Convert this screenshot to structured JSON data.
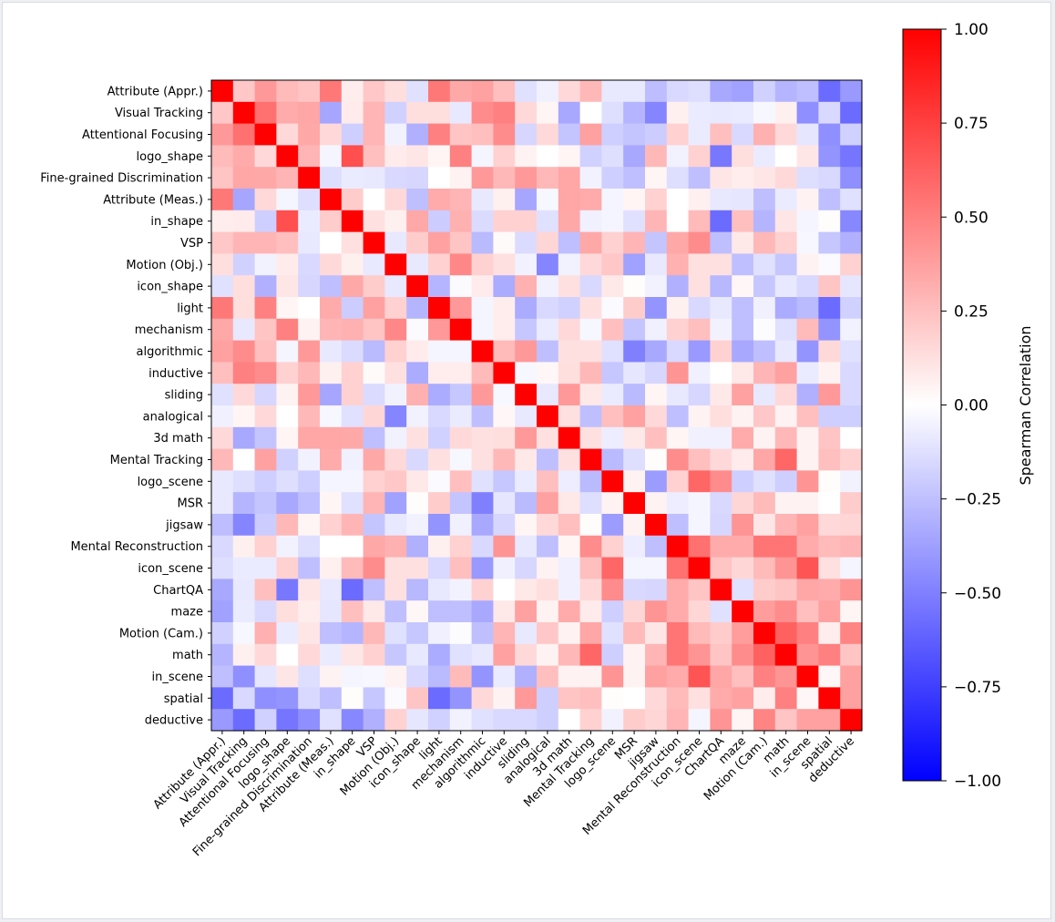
{
  "chart_data": {
    "type": "heatmap",
    "title": "",
    "labels": [
      "Attribute (Appr.)",
      "Visual Tracking",
      "Attentional Focusing",
      "logo_shape",
      "Fine-grained Discrimination",
      "Attribute (Meas.)",
      "in_shape",
      "VSP",
      "Motion (Obj.)",
      "icon_shape",
      "light",
      "mechanism",
      "algorithmic",
      "inductive",
      "sliding",
      "analogical",
      "3d math",
      "Mental Tracking",
      "logo_scene",
      "MSR",
      "jigsaw",
      "Mental Reconstruction",
      "icon_scene",
      "ChartQA",
      "maze",
      "Motion (Cam.)",
      "math",
      "in_scene",
      "spatial",
      "deductive"
    ],
    "colormap": "bwr",
    "colors": {
      "negative": "#0000ff",
      "zero": "#ffffff",
      "positive": "#ff0000"
    },
    "vmin": -1.0,
    "vmax": 1.0,
    "colorbar": {
      "label": "Spearman Correlation",
      "ticks": [
        1.0,
        0.75,
        0.5,
        0.25,
        0.0,
        -0.25,
        -0.5,
        -0.75,
        -1.0
      ],
      "tick_labels": [
        "1.00",
        "0.75",
        "0.50",
        "0.25",
        "0.00",
        "−0.25",
        "−0.50",
        "−0.75",
        "−1.00"
      ]
    },
    "values": [
      [
        1,
        0.22,
        0.4,
        0.27,
        0.23,
        0.53,
        0.07,
        0.22,
        0.13,
        -0.12,
        0.53,
        0.34,
        0.37,
        0.25,
        -0.12,
        -0.06,
        0.15,
        0.28,
        -0.09,
        -0.09,
        -0.26,
        -0.15,
        -0.13,
        -0.34,
        -0.37,
        -0.18,
        -0.29,
        -0.25,
        -0.58,
        -0.4
      ],
      [
        0.22,
        1,
        0.56,
        0.33,
        0.35,
        -0.35,
        0.08,
        0.29,
        -0.18,
        0.13,
        0.13,
        -0.09,
        0.45,
        0.5,
        0.15,
        0.04,
        -0.34,
        0,
        -0.13,
        -0.29,
        -0.48,
        0.06,
        -0.08,
        -0.09,
        -0.08,
        -0.03,
        0.06,
        -0.44,
        -0.15,
        -0.58
      ],
      [
        0.4,
        0.56,
        1,
        0.15,
        0.34,
        0.15,
        -0.19,
        0.29,
        -0.05,
        -0.31,
        0.5,
        0.23,
        0.25,
        0.45,
        -0.16,
        0.15,
        -0.23,
        0.37,
        -0.19,
        -0.23,
        -0.2,
        0.18,
        -0.08,
        0.25,
        -0.15,
        0.31,
        0.15,
        -0.1,
        -0.44,
        -0.18
      ],
      [
        0.27,
        0.33,
        0.15,
        1,
        0.29,
        -0.04,
        0.69,
        0.25,
        0.08,
        0.1,
        0.04,
        0.5,
        -0.04,
        0.18,
        0.05,
        0,
        0.04,
        -0.18,
        -0.13,
        -0.34,
        0.28,
        -0.05,
        0.18,
        -0.53,
        0.13,
        -0.08,
        0,
        0.1,
        -0.42,
        -0.54
      ],
      [
        0.23,
        0.35,
        0.34,
        0.29,
        1,
        -0.13,
        -0.08,
        -0.09,
        -0.15,
        -0.16,
        0,
        0.05,
        0.4,
        0.28,
        0.4,
        0.28,
        0.35,
        -0.05,
        -0.19,
        -0.25,
        0.04,
        -0.13,
        -0.25,
        0.1,
        0.07,
        0.1,
        0.15,
        -0.13,
        -0.15,
        -0.44
      ],
      [
        0.53,
        -0.35,
        0.15,
        -0.04,
        -0.13,
        1,
        0.2,
        0,
        0.15,
        -0.25,
        0.33,
        0.29,
        -0.09,
        0.06,
        -0.35,
        -0.03,
        0.35,
        0.33,
        -0.04,
        0.04,
        0.18,
        0,
        0.06,
        -0.09,
        -0.1,
        -0.25,
        -0.08,
        0.05,
        -0.25,
        -0.12
      ],
      [
        0.07,
        0.08,
        -0.19,
        0.69,
        -0.08,
        0.2,
        1,
        0.12,
        0.06,
        0.34,
        -0.2,
        0.31,
        -0.14,
        0.18,
        0.18,
        -0.12,
        0.34,
        -0.06,
        -0.04,
        -0.12,
        0.29,
        0,
        0.27,
        -0.58,
        0.25,
        -0.29,
        0.1,
        -0.04,
        0.01,
        -0.47
      ],
      [
        0.22,
        0.29,
        0.29,
        0.25,
        -0.09,
        0,
        0.12,
        1,
        -0.09,
        0.2,
        0.37,
        0.23,
        -0.27,
        0.02,
        -0.14,
        0.16,
        -0.25,
        0.34,
        0.18,
        0.29,
        -0.23,
        0.34,
        0.45,
        -0.25,
        0.09,
        0.28,
        0.18,
        -0.03,
        -0.22,
        -0.31
      ],
      [
        0.13,
        -0.18,
        -0.05,
        0.08,
        -0.15,
        0.15,
        0.06,
        -0.09,
        1,
        -0.09,
        0.18,
        0.47,
        0.18,
        0.12,
        -0.05,
        -0.48,
        -0.05,
        0.15,
        0.22,
        -0.37,
        -0.09,
        0.31,
        0.12,
        0.12,
        -0.25,
        -0.12,
        -0.22,
        0.05,
        -0.02,
        0.18
      ],
      [
        -0.12,
        0.13,
        -0.31,
        0.1,
        -0.16,
        -0.25,
        0.34,
        0.2,
        -0.09,
        1,
        -0.29,
        -0.02,
        0.08,
        -0.33,
        0.31,
        -0.05,
        0.12,
        -0.15,
        0.09,
        0.01,
        -0.05,
        -0.31,
        0.12,
        -0.28,
        0.03,
        -0.22,
        -0.09,
        -0.15,
        0.23,
        -0.1
      ],
      [
        0.53,
        0.13,
        0.5,
        0.04,
        0,
        0.33,
        -0.2,
        0.37,
        0.18,
        -0.29,
        1,
        0.4,
        -0.04,
        0.07,
        -0.33,
        -0.15,
        -0.18,
        0.12,
        -0.02,
        0.2,
        -0.42,
        0.06,
        -0.15,
        -0.09,
        -0.25,
        -0.06,
        -0.33,
        -0.27,
        -0.58,
        -0.18
      ],
      [
        0.34,
        -0.09,
        0.23,
        0.5,
        0.05,
        0.29,
        0.31,
        0.23,
        0.47,
        -0.02,
        0.4,
        1,
        -0.04,
        0.07,
        -0.22,
        -0.08,
        0.15,
        -0.03,
        0.25,
        -0.23,
        -0.06,
        0.18,
        0.25,
        -0.05,
        -0.25,
        -0.01,
        -0.12,
        0.27,
        -0.42,
        -0.05
      ],
      [
        0.37,
        0.45,
        0.25,
        -0.04,
        0.4,
        -0.09,
        -0.14,
        -0.27,
        0.18,
        0.08,
        -0.04,
        -0.04,
        1,
        0.27,
        0.4,
        -0.25,
        0.12,
        0.12,
        -0.12,
        -0.5,
        -0.34,
        -0.15,
        -0.4,
        0.18,
        -0.34,
        -0.25,
        -0.09,
        -0.42,
        0.15,
        -0.12
      ],
      [
        0.25,
        0.5,
        0.45,
        0.18,
        0.28,
        0.06,
        0.18,
        0.02,
        0.12,
        -0.33,
        0.07,
        0.07,
        0.27,
        1,
        -0.03,
        0.03,
        0.13,
        0.28,
        -0.22,
        -0.1,
        -0.16,
        0.42,
        -0.06,
        0,
        0.09,
        0.29,
        0.37,
        -0.08,
        0.05,
        -0.15
      ],
      [
        -0.12,
        0.15,
        -0.16,
        0.05,
        0.4,
        -0.35,
        0.18,
        -0.14,
        -0.05,
        0.31,
        -0.33,
        -0.22,
        0.4,
        -0.03,
        1,
        -0.09,
        0.4,
        0.09,
        -0.08,
        -0.27,
        0.04,
        -0.09,
        -0.16,
        0.09,
        0.37,
        -0.09,
        0.15,
        -0.31,
        0.4,
        -0.15
      ],
      [
        -0.06,
        0.04,
        0.15,
        0,
        0.28,
        -0.03,
        -0.12,
        0.16,
        -0.48,
        -0.05,
        -0.15,
        -0.08,
        -0.25,
        0.03,
        -0.09,
        1,
        0.12,
        -0.25,
        0.25,
        0.37,
        0.15,
        -0.25,
        0.05,
        0.13,
        0.05,
        0.22,
        0.05,
        0.25,
        -0.19,
        -0.19
      ],
      [
        0.15,
        -0.34,
        -0.23,
        0.04,
        0.35,
        0.35,
        0.34,
        -0.25,
        -0.05,
        0.12,
        -0.18,
        0.15,
        0.12,
        0.13,
        0.4,
        0.12,
        1,
        0.12,
        -0.07,
        0.09,
        0.25,
        0.04,
        -0.06,
        -0.06,
        0.33,
        0.05,
        0.28,
        0.05,
        0.23,
        0
      ],
      [
        0.28,
        0,
        0.37,
        -0.18,
        -0.05,
        0.33,
        -0.06,
        0.34,
        0.15,
        -0.15,
        0.12,
        -0.03,
        0.12,
        0.28,
        0.09,
        -0.25,
        0.12,
        1,
        -0.27,
        -0.13,
        0.01,
        0.45,
        0.25,
        0.15,
        0.08,
        0.35,
        0.6,
        0.05,
        0.25,
        0.18
      ],
      [
        -0.09,
        -0.13,
        -0.19,
        -0.13,
        -0.19,
        -0.04,
        -0.04,
        0.18,
        0.22,
        0.09,
        -0.02,
        0.25,
        -0.12,
        -0.22,
        -0.08,
        0.25,
        -0.07,
        -0.27,
        1,
        0.05,
        -0.39,
        0.18,
        0.6,
        0.45,
        -0.19,
        -0.12,
        -0.19,
        0.42,
        0.01,
        -0.05
      ],
      [
        -0.09,
        -0.29,
        -0.23,
        -0.34,
        -0.25,
        0.04,
        -0.12,
        0.29,
        -0.37,
        0.01,
        0.2,
        -0.23,
        -0.5,
        -0.1,
        -0.27,
        0.37,
        0.09,
        -0.13,
        0.05,
        1,
        0.05,
        -0.07,
        -0.04,
        -0.15,
        0.16,
        0.27,
        0.05,
        0.05,
        0,
        0.2
      ],
      [
        -0.26,
        -0.48,
        -0.2,
        0.28,
        0.04,
        0.18,
        0.29,
        -0.23,
        -0.09,
        -0.05,
        -0.42,
        -0.06,
        -0.34,
        -0.16,
        0.04,
        0.15,
        0.25,
        0.01,
        -0.39,
        0.05,
        1,
        -0.25,
        -0.04,
        -0.16,
        0.42,
        0.1,
        0.29,
        0.37,
        0.15,
        0.16
      ],
      [
        -0.15,
        0.06,
        0.18,
        -0.05,
        -0.13,
        0,
        0,
        0.34,
        0.31,
        -0.31,
        0.06,
        0.18,
        -0.15,
        0.42,
        -0.09,
        -0.25,
        0.04,
        0.45,
        0.18,
        -0.07,
        -0.25,
        1,
        0.56,
        0.33,
        0.33,
        0.54,
        0.54,
        0.33,
        0.27,
        0.29
      ],
      [
        -0.13,
        -0.08,
        -0.08,
        0.18,
        -0.25,
        0.06,
        0.27,
        0.45,
        0.12,
        0.12,
        -0.15,
        0.25,
        -0.4,
        -0.06,
        -0.16,
        0.05,
        -0.06,
        0.25,
        0.6,
        -0.04,
        -0.04,
        0.56,
        1,
        0.23,
        0.16,
        0.27,
        0.42,
        0.67,
        0.12,
        -0.04
      ],
      [
        -0.34,
        -0.09,
        0.25,
        -0.53,
        0.1,
        -0.09,
        -0.58,
        -0.25,
        0.12,
        -0.28,
        -0.09,
        -0.05,
        0.18,
        0,
        0.09,
        0.13,
        -0.06,
        0.15,
        0.45,
        -0.15,
        -0.16,
        0.33,
        0.23,
        1,
        -0.12,
        0.2,
        0.23,
        0.35,
        0.33,
        0.42
      ],
      [
        -0.37,
        -0.08,
        -0.15,
        0.13,
        0.07,
        -0.1,
        0.25,
        0.09,
        -0.25,
        0.03,
        -0.25,
        -0.25,
        -0.34,
        0.09,
        0.37,
        0.05,
        0.33,
        0.08,
        -0.19,
        0.16,
        0.42,
        0.33,
        0.16,
        -0.12,
        1,
        0.39,
        0.45,
        0.25,
        0.37,
        0.04
      ],
      [
        -0.18,
        -0.03,
        0.31,
        -0.08,
        0.1,
        -0.25,
        -0.29,
        0.28,
        -0.12,
        -0.22,
        -0.06,
        -0.01,
        -0.25,
        0.29,
        -0.09,
        0.22,
        0.05,
        0.35,
        -0.12,
        0.27,
        0.1,
        0.54,
        0.27,
        0.2,
        0.39,
        1,
        0.62,
        0.5,
        0.07,
        0.48
      ],
      [
        -0.29,
        0.06,
        0.15,
        0,
        0.15,
        -0.08,
        0.1,
        0.18,
        -0.22,
        -0.09,
        -0.33,
        -0.12,
        -0.09,
        0.37,
        0.15,
        0.05,
        0.28,
        0.6,
        -0.19,
        0.05,
        0.29,
        0.54,
        0.42,
        0.23,
        0.45,
        0.62,
        1,
        0.42,
        0.5,
        0.23
      ],
      [
        -0.25,
        -0.44,
        -0.1,
        0.1,
        -0.13,
        0.05,
        -0.04,
        -0.03,
        0.05,
        -0.15,
        -0.27,
        0.27,
        -0.42,
        -0.08,
        -0.31,
        0.25,
        0.05,
        0.05,
        0.42,
        0.05,
        0.37,
        0.33,
        0.67,
        0.35,
        0.25,
        0.5,
        0.42,
        1,
        0.03,
        0.37
      ],
      [
        -0.58,
        -0.15,
        -0.44,
        -0.42,
        -0.15,
        -0.25,
        0.01,
        -0.22,
        -0.02,
        0.23,
        -0.58,
        -0.42,
        0.15,
        0.05,
        0.4,
        -0.19,
        0.23,
        0.25,
        0.01,
        0,
        0.15,
        0.27,
        0.12,
        0.33,
        0.37,
        0.07,
        0.5,
        0.03,
        1,
        0.37
      ],
      [
        -0.4,
        -0.58,
        -0.18,
        -0.54,
        -0.44,
        -0.12,
        -0.47,
        -0.31,
        0.18,
        -0.1,
        -0.18,
        -0.05,
        -0.12,
        -0.15,
        -0.15,
        -0.19,
        0,
        0.18,
        -0.05,
        0.2,
        0.16,
        0.29,
        -0.04,
        0.42,
        0.04,
        0.48,
        0.23,
        0.37,
        0.37,
        1
      ]
    ]
  }
}
